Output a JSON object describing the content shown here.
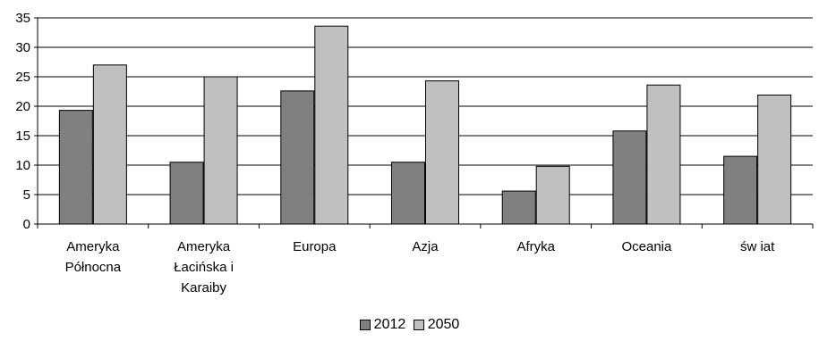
{
  "chart_data": {
    "type": "bar",
    "categories": [
      [
        "Ameryka",
        "Północna"
      ],
      [
        "Ameryka",
        "Łacińska i",
        "Karaiby"
      ],
      [
        "Europa"
      ],
      [
        "Azja"
      ],
      [
        "Afryka"
      ],
      [
        "Oceania"
      ],
      [
        "św iat"
      ]
    ],
    "series": [
      {
        "name": "2012",
        "color": "#808080",
        "values": [
          19.3,
          10.5,
          22.6,
          10.5,
          5.6,
          15.8,
          11.5
        ]
      },
      {
        "name": "2050",
        "color": "#c0c0c0",
        "values": [
          27.0,
          25.0,
          33.6,
          24.3,
          9.8,
          23.6,
          21.9
        ]
      }
    ],
    "ylim": [
      0,
      35
    ],
    "yticks": [
      0,
      5,
      10,
      15,
      20,
      25,
      30,
      35
    ],
    "grid": true,
    "legend": "bottom-center"
  }
}
